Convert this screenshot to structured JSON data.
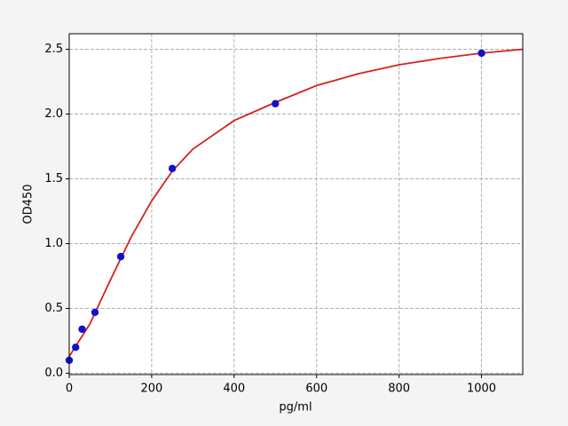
{
  "chart_data": {
    "type": "scatter",
    "xlabel": "pg/ml",
    "ylabel": "OD450",
    "xlim": [
      0,
      1100
    ],
    "ylim": [
      -0.01,
      2.62
    ],
    "xticks": [
      0,
      200,
      400,
      600,
      800,
      1000
    ],
    "yticks": [
      {
        "value": 0,
        "label": "0.0"
      },
      0.5,
      {
        "value": 1,
        "label": "1.0"
      },
      1.5,
      {
        "value": 2,
        "label": "2.0"
      },
      2.5
    ],
    "grid": true,
    "series": [
      {
        "type": "line",
        "color": "#d62020",
        "x": [
          0,
          50,
          100,
          150,
          200,
          250,
          300,
          400,
          500,
          600,
          700,
          800,
          900,
          1000,
          1100
        ],
        "values": [
          0.13,
          0.38,
          0.72,
          1.05,
          1.33,
          1.56,
          1.73,
          1.95,
          2.09,
          2.22,
          2.31,
          2.38,
          2.43,
          2.47,
          2.5
        ]
      },
      {
        "type": "scatter",
        "color": "#1010d0",
        "x": [
          0,
          15.6,
          31.25,
          62.5,
          125,
          250,
          500,
          1000
        ],
        "values": [
          0.1,
          0.2,
          0.34,
          0.47,
          0.9,
          1.58,
          2.08,
          2.47
        ]
      }
    ]
  }
}
